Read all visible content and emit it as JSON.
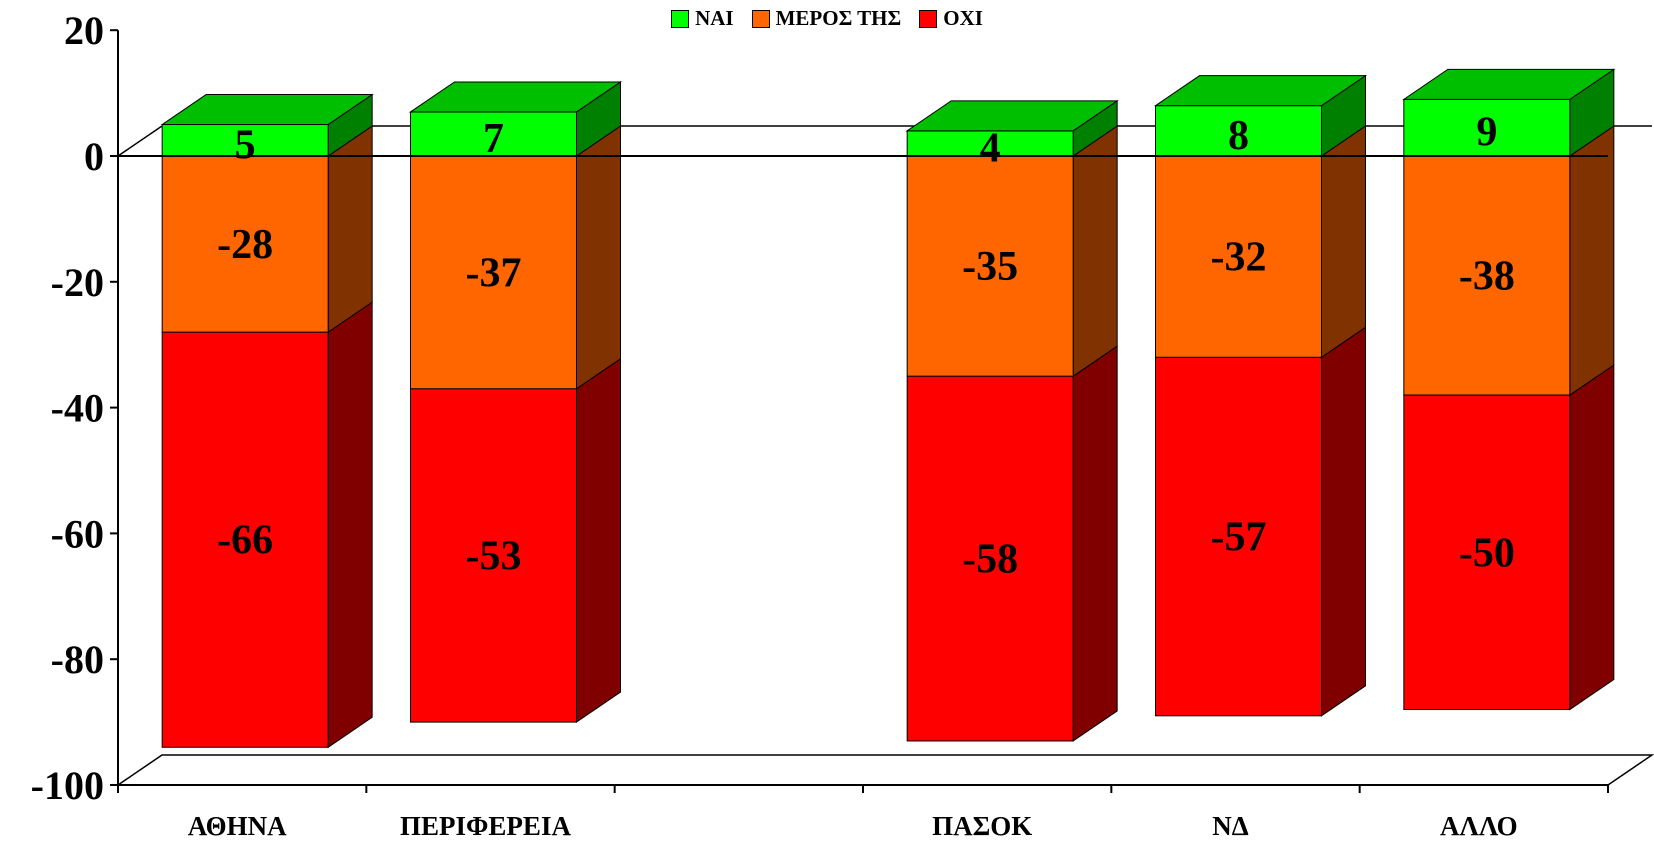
{
  "chart_data": {
    "type": "bar",
    "stacked": true,
    "three_d": true,
    "categories": [
      "ΑΘΗΝΑ",
      "ΠΕΡΙΦΕΡΕΙΑ",
      "",
      "ΠΑΣΟΚ",
      "ΝΔ",
      "ΑΛΛΟ"
    ],
    "series": [
      {
        "name": "ΝΑΙ",
        "values": [
          5,
          7,
          null,
          4,
          8,
          9
        ],
        "color": "#00ff00"
      },
      {
        "name": "ΜΕΡΟΣ ΤΗΣ",
        "values": [
          -28,
          -37,
          null,
          -35,
          -32,
          -38
        ],
        "color": "#ff6600"
      },
      {
        "name": "ΟΧΙ",
        "values": [
          -66,
          -53,
          null,
          -58,
          -57,
          -50
        ],
        "color": "#ff0000"
      }
    ],
    "yticks": [
      "20",
      "0",
      "-20",
      "-40",
      "-60",
      "-80",
      "-100"
    ],
    "ylim": [
      -100,
      20
    ],
    "legend_position": "top-center",
    "grid": false
  }
}
